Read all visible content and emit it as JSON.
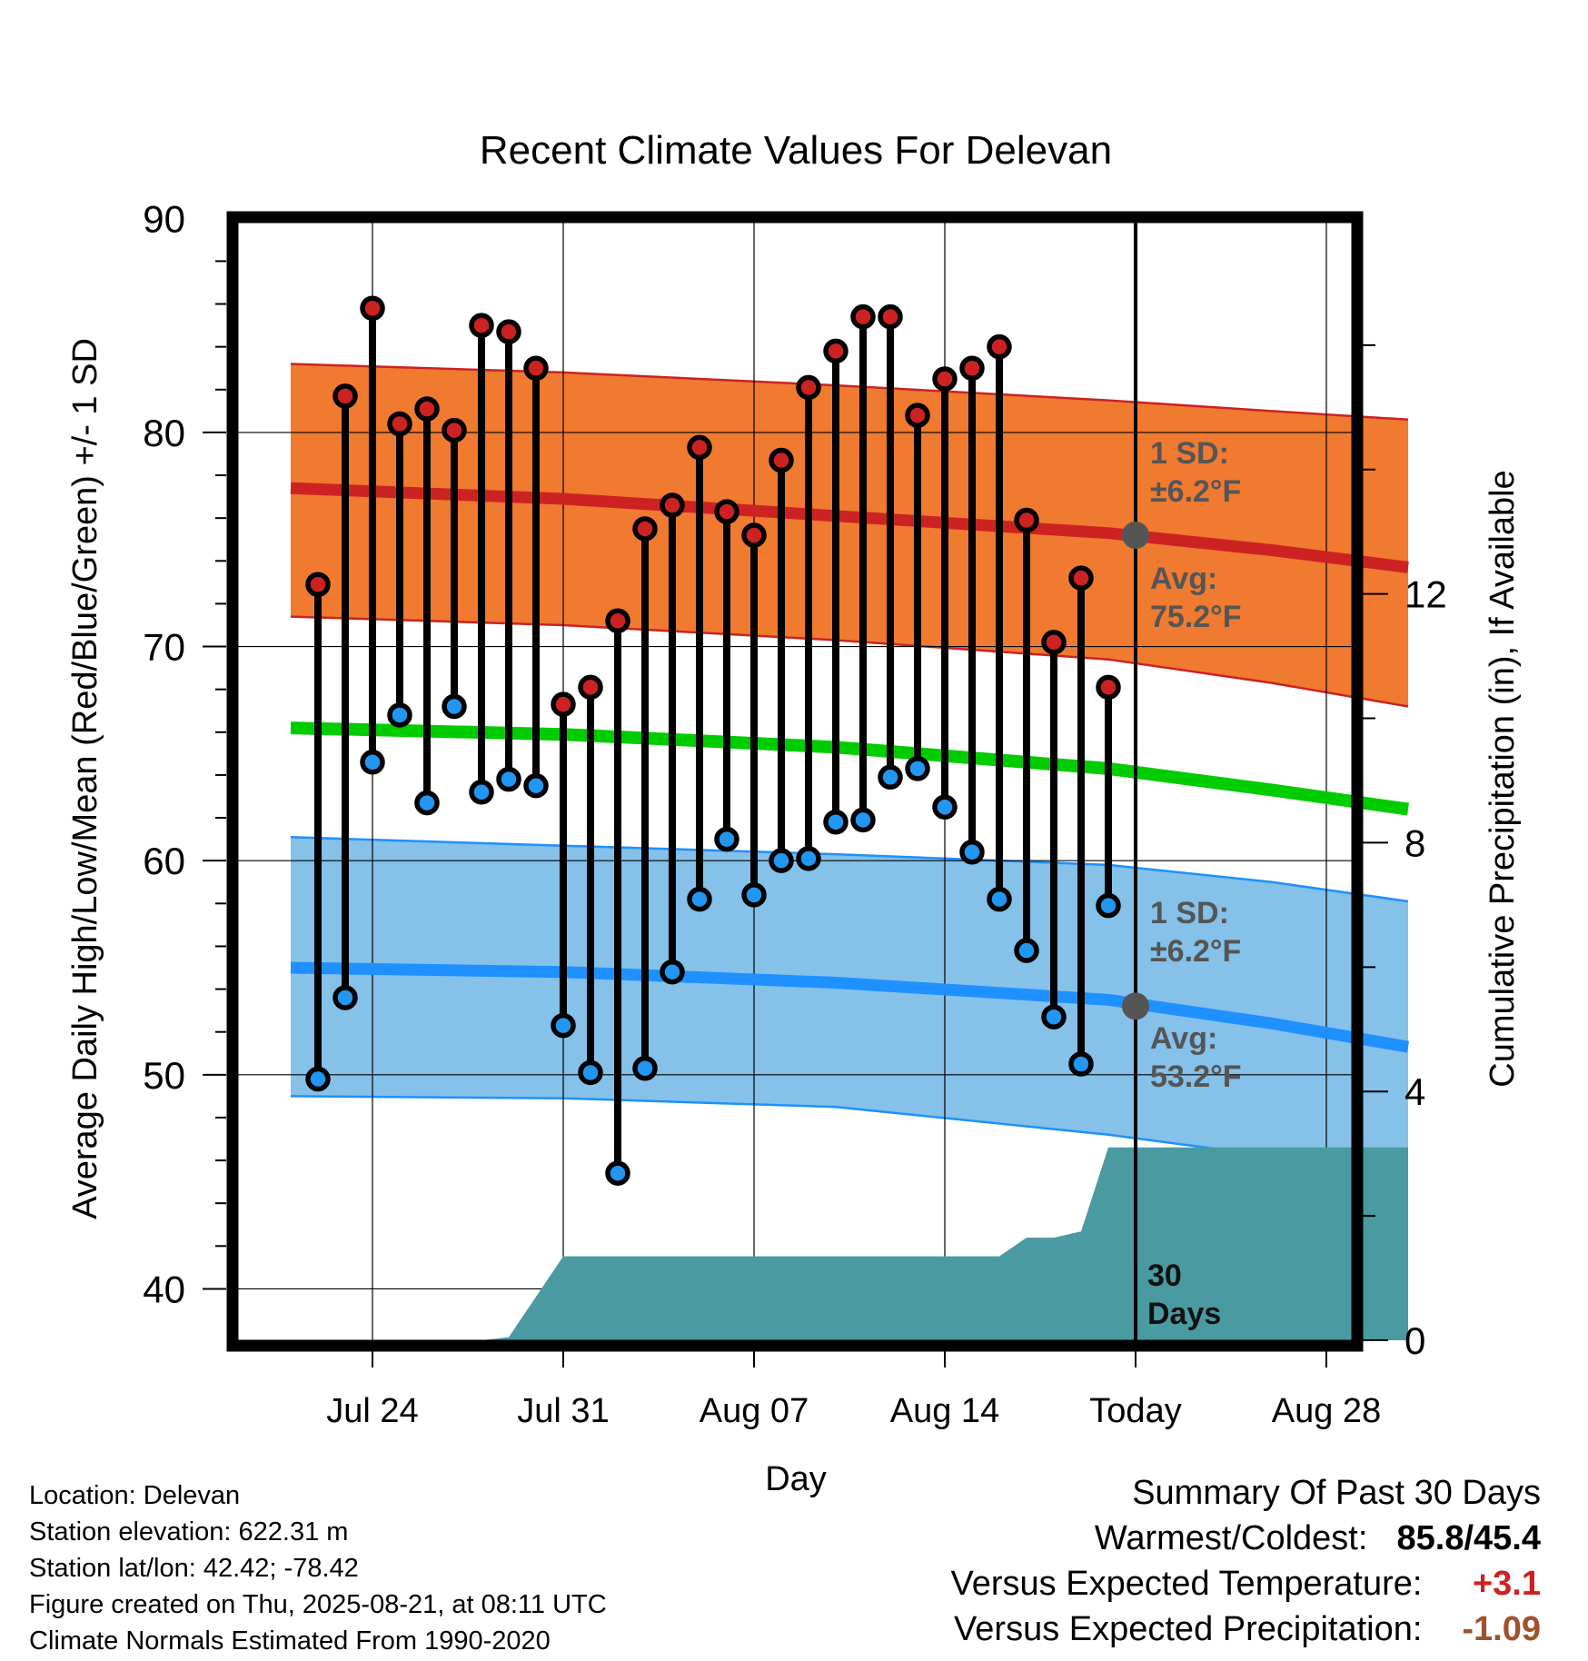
{
  "chart_data": {
    "type": "line",
    "title": "Recent Climate Values For Delevan",
    "xlabel": "Day",
    "ylabel": "Average Daily High/Low/Mean (Red/Blue/Green) +/- 1 SD",
    "y2label": "Cumulative Precipitation (in), If Available",
    "x_tick_labels": [
      "Jul 24",
      "Jul 31",
      "Aug 07",
      "Aug 14",
      "Today",
      "Aug 28"
    ],
    "y_tick_labels": [
      "90",
      "80",
      "70",
      "60",
      "50",
      "40"
    ],
    "y2_tick_labels": [
      "12",
      "8",
      "4",
      "0"
    ],
    "ylim": [
      37.6,
      89.8
    ],
    "y2lim": [
      0,
      17.97
    ],
    "day_range": [
      -31,
      10
    ],
    "today_day": 0,
    "grid": true,
    "series": [
      {
        "role": "observed_high",
        "day": [
          -30,
          -29,
          -28,
          -27,
          -26,
          -25,
          -24,
          -23,
          -22,
          -21,
          -20,
          -19,
          -18,
          -17,
          -16,
          -15,
          -14,
          -13,
          -12,
          -11,
          -10,
          -9,
          -8,
          -7,
          -6,
          -5,
          -4,
          -3,
          -2,
          -1
        ],
        "values": [
          72.9,
          81.7,
          85.8,
          80.4,
          81.1,
          80.1,
          85.0,
          84.7,
          83.0,
          67.3,
          68.1,
          71.2,
          75.5,
          76.6,
          79.3,
          76.3,
          75.2,
          78.7,
          82.1,
          83.8,
          85.4,
          85.4,
          80.8,
          82.5,
          83.0,
          84.0,
          75.9,
          70.2,
          73.2,
          68.1
        ]
      },
      {
        "role": "observed_low",
        "day": [
          -30,
          -29,
          -28,
          -27,
          -26,
          -25,
          -24,
          -23,
          -22,
          -21,
          -20,
          -19,
          -18,
          -17,
          -16,
          -15,
          -14,
          -13,
          -12,
          -11,
          -10,
          -9,
          -8,
          -7,
          -6,
          -5,
          -4,
          -3,
          -2,
          -1
        ],
        "values": [
          49.8,
          53.6,
          64.6,
          66.8,
          62.7,
          67.2,
          63.2,
          63.8,
          63.5,
          52.3,
          50.1,
          45.4,
          50.3,
          54.8,
          58.2,
          61.0,
          58.4,
          60.0,
          60.1,
          61.8,
          61.9,
          63.9,
          64.3,
          62.5,
          60.4,
          58.2,
          55.8,
          52.7,
          50.5,
          57.9
        ]
      },
      {
        "role": "normal_high_avg",
        "day": [
          -31,
          -21,
          -11,
          -1,
          5,
          10
        ],
        "values": [
          77.4,
          76.9,
          76.1,
          75.3,
          74.5,
          73.7
        ]
      },
      {
        "role": "normal_high_upper",
        "day": [
          -31,
          -21,
          -11,
          -1,
          5,
          10
        ],
        "values": [
          83.2,
          82.8,
          82.2,
          81.5,
          81.0,
          80.6
        ]
      },
      {
        "role": "normal_high_lower",
        "day": [
          -31,
          -21,
          -11,
          -1,
          5,
          10
        ],
        "values": [
          71.4,
          71.0,
          70.3,
          69.4,
          68.3,
          67.2
        ]
      },
      {
        "role": "normal_mean",
        "day": [
          -31,
          -21,
          -11,
          -1,
          5,
          10
        ],
        "values": [
          66.2,
          65.9,
          65.3,
          64.3,
          63.3,
          62.4
        ]
      },
      {
        "role": "normal_low_upper",
        "day": [
          -31,
          -21,
          -11,
          -1,
          5,
          10
        ],
        "values": [
          61.1,
          60.7,
          60.3,
          59.8,
          59.0,
          58.1
        ]
      },
      {
        "role": "normal_low_avg",
        "day": [
          -31,
          -21,
          -11,
          -1,
          5,
          10
        ],
        "values": [
          55.0,
          54.8,
          54.3,
          53.5,
          52.4,
          51.3
        ]
      },
      {
        "role": "normal_low_lower",
        "day": [
          -31,
          -21,
          -11,
          -1,
          5,
          10
        ],
        "values": [
          49.0,
          48.9,
          48.5,
          47.2,
          46.2,
          45.0
        ]
      },
      {
        "role": "cumulative_precipitation",
        "day": [
          -31,
          -27,
          -24,
          -23,
          -21,
          -6,
          -5,
          -4,
          -3,
          -2,
          -1,
          0,
          10
        ],
        "values": [
          0,
          0,
          0,
          0.05,
          1.35,
          1.35,
          1.35,
          1.65,
          1.65,
          1.75,
          3.1,
          3.1,
          3.1
        ]
      }
    ],
    "annotations": {
      "high_sd_label": "1 SD:",
      "high_sd_value": "±6.2°F",
      "high_avg_label": "Avg:",
      "high_avg_value": "75.2°F",
      "low_sd_label": "1 SD:",
      "low_sd_value": "±6.2°F",
      "low_avg_label": "Avg:",
      "low_avg_value": "53.2°F",
      "today_high_avg": 75.2,
      "today_low_avg": 53.2,
      "window_label_1": "30",
      "window_label_2": "Days"
    },
    "colors": {
      "high_band": "#f07a30",
      "high_line": "#cc2222",
      "mean_line": "#00cc00",
      "low_band": "#85c1e9",
      "low_line": "#1e90ff",
      "precip": "#4a9aa2",
      "high_dot": "#cc2222",
      "low_dot": "#2196f3",
      "annotation_text": "#555555"
    }
  },
  "info": {
    "location": "Location: Delevan",
    "elevation": "Station elevation: 622.31 m",
    "latlon": "Station lat/lon: 42.42; -78.42",
    "created": "Figure created on Thu, 2025-08-21, at 08:11 UTC",
    "normals": "Climate Normals Estimated From 1990-2020"
  },
  "summary": {
    "title": "Summary Of Past 30 Days",
    "warm_cold_label": "Warmest/Coldest:",
    "warm_cold_value": "85.8/45.4",
    "temp_label": "Versus Expected Temperature:",
    "temp_value": "+3.1",
    "temp_color": "#cc2222",
    "precip_label": "Versus Expected Precipitation:",
    "precip_value": "-1.09",
    "precip_color": "#a0522d"
  }
}
